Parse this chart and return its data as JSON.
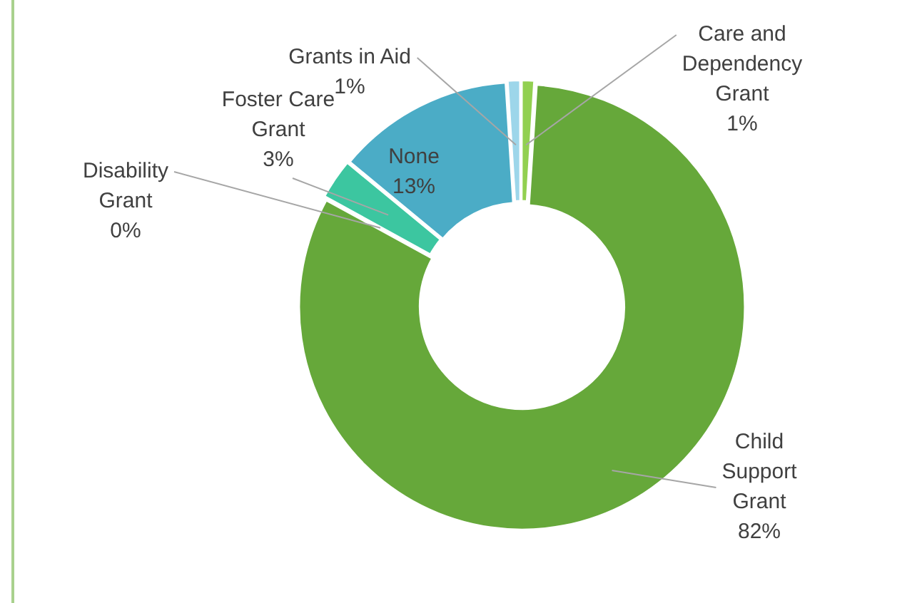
{
  "chart_data": {
    "type": "donut",
    "categories": [
      "Care and Dependency Grant",
      "Child Support Grant",
      "Disability Grant",
      "Foster Care Grant",
      "None",
      "Grants in Aid"
    ],
    "values": [
      1,
      82,
      0,
      3,
      13,
      1
    ],
    "colors": [
      "#92d050",
      "#66a83a",
      "#1f7a5c",
      "#3cc6a0",
      "#4bacc6",
      "#9dd6ea"
    ],
    "value_labels": [
      "1%",
      "82%",
      "0%",
      "3%",
      "13%",
      "1%"
    ],
    "legend": false
  }
}
